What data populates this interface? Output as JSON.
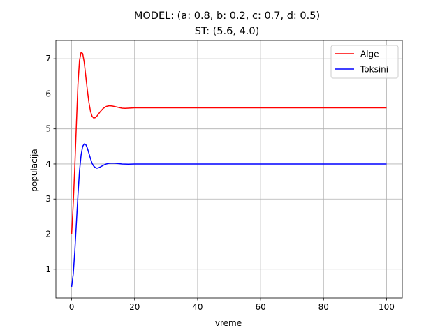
{
  "chart_data": {
    "type": "line",
    "title_line1": "MODEL: (a: 0.8, b: 0.2, c: 0.7, d: 0.5)",
    "title_line2": "ST: (5.6, 4.0)",
    "xlabel": "vreme",
    "ylabel": "populacija",
    "xlim": [
      -5,
      105
    ],
    "ylim": [
      0.18,
      7.52
    ],
    "xticks": [
      0,
      20,
      40,
      60,
      80,
      100
    ],
    "yticks": [
      1,
      2,
      3,
      4,
      5,
      6,
      7
    ],
    "grid": true,
    "legend_position": "top-right",
    "series": [
      {
        "name": "Alge",
        "color": "#ff0000",
        "x": [
          0,
          0.5,
          1,
          1.5,
          2,
          2.5,
          3,
          3.5,
          4,
          4.5,
          5,
          5.5,
          6,
          6.5,
          7,
          7.5,
          8,
          8.5,
          9,
          10,
          11,
          12,
          13,
          14,
          15,
          16,
          17,
          18,
          20,
          22,
          25,
          30,
          40,
          60,
          80,
          100
        ],
        "y": [
          2.0,
          2.85,
          3.9,
          5.1,
          6.25,
          6.95,
          7.18,
          7.15,
          6.9,
          6.5,
          6.1,
          5.75,
          5.5,
          5.36,
          5.31,
          5.32,
          5.36,
          5.42,
          5.48,
          5.58,
          5.64,
          5.66,
          5.65,
          5.63,
          5.61,
          5.59,
          5.585,
          5.59,
          5.6,
          5.6,
          5.6,
          5.6,
          5.6,
          5.6,
          5.6,
          5.6
        ]
      },
      {
        "name": "Toksini",
        "color": "#0000ff",
        "x": [
          0,
          0.5,
          1,
          1.5,
          2,
          2.5,
          3,
          3.5,
          4,
          4.5,
          5,
          5.5,
          6,
          6.5,
          7,
          7.5,
          8,
          8.5,
          9,
          10,
          11,
          12,
          13,
          14,
          15,
          16,
          18,
          20,
          22,
          25,
          30,
          40,
          60,
          80,
          100
        ],
        "y": [
          0.5,
          0.85,
          1.5,
          2.3,
          3.1,
          3.8,
          4.25,
          4.5,
          4.57,
          4.55,
          4.45,
          4.3,
          4.15,
          4.02,
          3.94,
          3.9,
          3.88,
          3.89,
          3.91,
          3.96,
          4.0,
          4.02,
          4.025,
          4.02,
          4.01,
          4.0,
          3.995,
          4.0,
          4.0,
          4.0,
          4.0,
          4.0,
          4.0,
          4.0,
          4.0
        ]
      }
    ]
  }
}
